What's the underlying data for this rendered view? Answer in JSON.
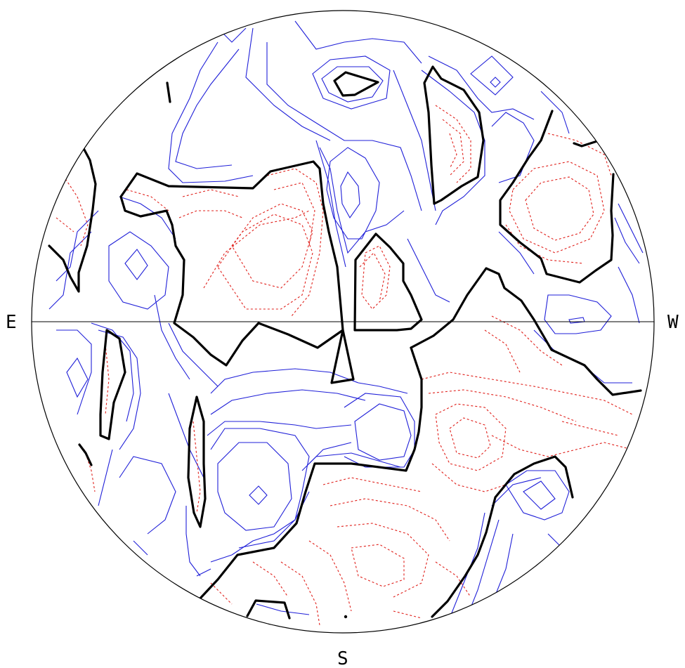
{
  "compass": {
    "east": "E",
    "west": "W",
    "south": "S"
  },
  "colors": {
    "positive_contour": "#1f1fd8",
    "negative_contour": "#e0201b",
    "zero_contour": "#000000",
    "background": "#ffffff"
  }
}
